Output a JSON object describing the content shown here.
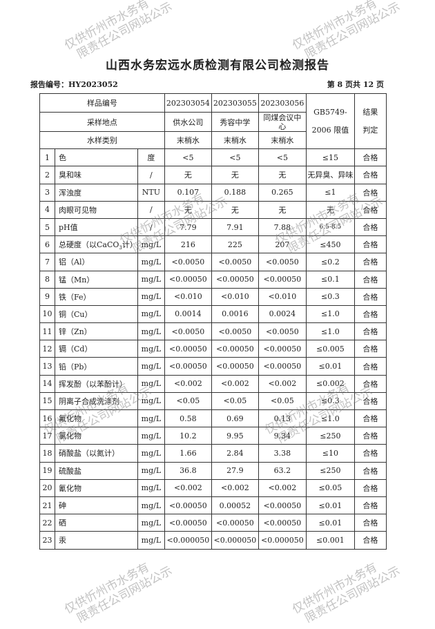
{
  "title": "山西水务宏远水质检测有限公司检测报告",
  "report_no": "报告编号：HY2023052",
  "page_info": "第 8 页共 12 页",
  "header": {
    "sample_no_label": "样品编号",
    "site_label": "采样地点",
    "type_label": "水样类别",
    "samples": [
      {
        "no": "202303054",
        "site": "供水公司",
        "type": "末梢水"
      },
      {
        "no": "202303055",
        "site": "秀容中学",
        "type": "末梢水"
      },
      {
        "no": "202303056",
        "site": "同煤会议中心",
        "type": "末梢水"
      }
    ],
    "limit_label_1": "GB5749-",
    "limit_label_2": "2006 限值",
    "result_label_1": "结果",
    "result_label_2": "判定"
  },
  "rows": [
    {
      "n": "1",
      "name": "色",
      "unit": "度",
      "v": [
        "<5",
        "<5",
        "<5"
      ],
      "limit": "≤15",
      "result": "合格"
    },
    {
      "n": "2",
      "name": "臭和味",
      "unit": "/",
      "v": [
        "无",
        "无",
        "无"
      ],
      "limit": "无异臭、异味",
      "result": "合格"
    },
    {
      "n": "3",
      "name": "浑浊度",
      "unit": "NTU",
      "v": [
        "0.107",
        "0.188",
        "0.265"
      ],
      "limit": "≤1",
      "result": "合格"
    },
    {
      "n": "4",
      "name": "肉眼可见物",
      "unit": "/",
      "v": [
        "无",
        "无",
        "无"
      ],
      "limit": "无",
      "result": "合格"
    },
    {
      "n": "5",
      "name": "pH值",
      "unit": "/",
      "v": [
        "7.79",
        "7.91",
        "7.88"
      ],
      "limit": "6.5-8.5",
      "result": "合格"
    },
    {
      "n": "6",
      "name": "总硬度（以CaCO3计）",
      "unit": "mg/L",
      "v": [
        "216",
        "225",
        "207"
      ],
      "limit": "≤450",
      "result": "合格"
    },
    {
      "n": "7",
      "name": "铝（Al）",
      "unit": "mg/L",
      "v": [
        "<0.0050",
        "<0.0050",
        "<0.0050"
      ],
      "limit": "≤0.2",
      "result": "合格"
    },
    {
      "n": "8",
      "name": "锰（Mn）",
      "unit": "mg/L",
      "v": [
        "<0.00050",
        "<0.00050",
        "<0.00050"
      ],
      "limit": "≤0.1",
      "result": "合格"
    },
    {
      "n": "9",
      "name": "铁（Fe）",
      "unit": "mg/L",
      "v": [
        "<0.010",
        "<0.010",
        "<0.010"
      ],
      "limit": "≤0.3",
      "result": "合格"
    },
    {
      "n": "10",
      "name": "铜（Cu）",
      "unit": "mg/L",
      "v": [
        "0.0014",
        "0.0016",
        "0.0024"
      ],
      "limit": "≤1.0",
      "result": "合格"
    },
    {
      "n": "11",
      "name": "锌（Zn）",
      "unit": "mg/L",
      "v": [
        "<0.0050",
        "<0.0050",
        "<0.0050"
      ],
      "limit": "≤1.0",
      "result": "合格"
    },
    {
      "n": "12",
      "name": "镉（Cd）",
      "unit": "mg/L",
      "v": [
        "<0.00050",
        "<0.00050",
        "<0.00050"
      ],
      "limit": "≤0.005",
      "result": "合格"
    },
    {
      "n": "13",
      "name": "铅（Pb）",
      "unit": "mg/L",
      "v": [
        "<0.00050",
        "<0.00050",
        "<0.00050"
      ],
      "limit": "≤0.01",
      "result": "合格"
    },
    {
      "n": "14",
      "name": "挥发酚（以苯酚计）",
      "unit": "mg/L",
      "v": [
        "<0.002",
        "<0.002",
        "<0.002"
      ],
      "limit": "≤0.002",
      "result": "合格"
    },
    {
      "n": "15",
      "name": "阴离子合成洗涤剂",
      "unit": "mg/L",
      "v": [
        "<0.05",
        "<0.05",
        "<0.05"
      ],
      "limit": "≤0.3",
      "result": "合格"
    },
    {
      "n": "16",
      "name": "氟化物",
      "unit": "mg/L",
      "v": [
        "0.58",
        "0.69",
        "0.13"
      ],
      "limit": "≤1.0",
      "result": "合格"
    },
    {
      "n": "17",
      "name": "氯化物",
      "unit": "mg/L",
      "v": [
        "10.2",
        "9.95",
        "9.34"
      ],
      "limit": "≤250",
      "result": "合格"
    },
    {
      "n": "18",
      "name": "硝酸盐（以氮计）",
      "unit": "mg/L",
      "v": [
        "1.66",
        "2.84",
        "3.38"
      ],
      "limit": "≤10",
      "result": "合格"
    },
    {
      "n": "19",
      "name": "硫酸盐",
      "unit": "mg/L",
      "v": [
        "36.8",
        "27.9",
        "63.2"
      ],
      "limit": "≤250",
      "result": "合格"
    },
    {
      "n": "20",
      "name": "氰化物",
      "unit": "mg/L",
      "v": [
        "<0.002",
        "<0.002",
        "<0.002"
      ],
      "limit": "≤0.05",
      "result": "合格"
    },
    {
      "n": "21",
      "name": "砷",
      "unit": "mg/L",
      "v": [
        "<0.00050",
        "0.00052",
        "<0.00050"
      ],
      "limit": "≤0.01",
      "result": "合格"
    },
    {
      "n": "22",
      "name": "硒",
      "unit": "mg/L",
      "v": [
        "<0.00050",
        "<0.00050",
        "<0.00050"
      ],
      "limit": "≤0.01",
      "result": "合格"
    },
    {
      "n": "23",
      "name": "汞",
      "unit": "mg/L",
      "v": [
        "<0.000050",
        "<0.000050",
        "<0.000050"
      ],
      "limit": "≤0.001",
      "result": "合格"
    }
  ],
  "watermark": {
    "line1": "仅供忻州市水务有",
    "line2": "限责任公司网站公示"
  }
}
